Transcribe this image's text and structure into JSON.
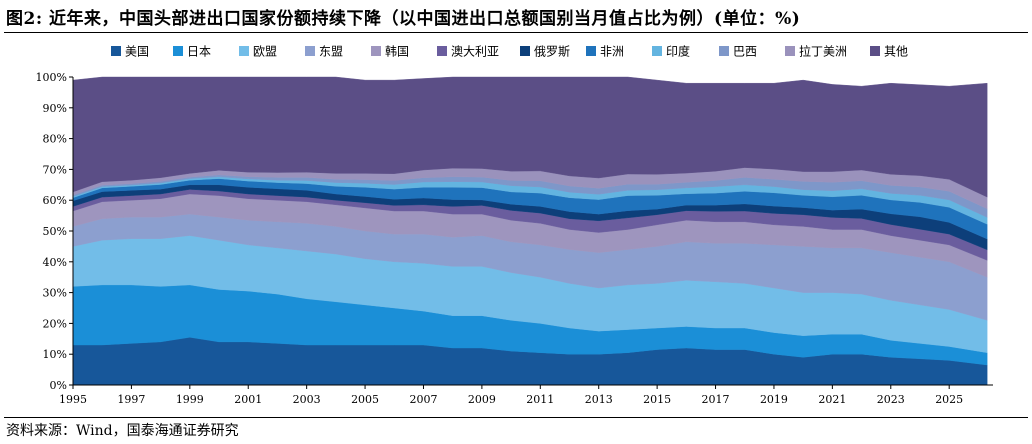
{
  "title": "图2:  近年来，中国头部进出口国家份额持续下降（以中国进出口总额国别当月值占比为例）(单位：%)",
  "source": "资料来源：Wind，国泰海通证券研究",
  "chart_data": {
    "type": "area",
    "stacked": true,
    "ylim": [
      0,
      100
    ],
    "xlim": [
      1995,
      2026.5
    ],
    "y_ticks": [
      "0%",
      "10%",
      "20%",
      "30%",
      "40%",
      "50%",
      "60%",
      "70%",
      "80%",
      "90%",
      "100%"
    ],
    "x_ticks": [
      "1995",
      "1997",
      "1999",
      "2001",
      "2003",
      "2005",
      "2007",
      "2009",
      "2011",
      "2013",
      "2015",
      "2017",
      "2019",
      "2021",
      "2023",
      "2025"
    ],
    "legend_position": "top",
    "x": [
      1995,
      1996,
      1997,
      1998,
      1999,
      2000,
      2001,
      2002,
      2003,
      2004,
      2005,
      2006,
      2007,
      2008,
      2009,
      2010,
      2011,
      2012,
      2013,
      2014,
      2015,
      2016,
      2017,
      2018,
      2019,
      2020,
      2021,
      2022,
      2023,
      2024,
      2025,
      2026.3
    ],
    "series": [
      {
        "name": "美国",
        "color": "#17579a",
        "values": [
          13,
          13,
          13.5,
          14,
          15.5,
          14,
          14,
          13.5,
          13,
          13,
          13,
          13,
          13,
          12,
          12,
          11,
          10.5,
          10,
          10,
          10.5,
          11.5,
          12,
          11.5,
          11.5,
          10,
          9,
          10,
          10,
          9,
          8.5,
          8,
          6.5
        ]
      },
      {
        "name": "日本",
        "color": "#1b8fd7",
        "values": [
          19,
          19.5,
          19,
          18,
          17,
          17,
          16.5,
          16,
          15,
          14,
          13,
          12,
          11,
          10.5,
          10.5,
          10,
          9.5,
          8.5,
          7.5,
          7.5,
          7,
          7,
          7,
          7,
          7,
          7,
          6.5,
          6.5,
          5.5,
          5,
          4.5,
          4
        ]
      },
      {
        "name": "欧盟",
        "color": "#72bde8",
        "values": [
          13,
          14.5,
          15,
          15.5,
          16,
          16,
          15,
          15,
          15.5,
          15.5,
          15,
          15,
          15.5,
          16,
          16,
          15.5,
          15,
          14.5,
          14,
          14.5,
          14.5,
          15,
          15,
          14.5,
          14.5,
          14,
          13.5,
          13,
          13,
          12.5,
          12,
          10.5
        ]
      },
      {
        "name": "东盟",
        "color": "#8c9fcf",
        "values": [
          6.5,
          7,
          7,
          7,
          7,
          7.5,
          8,
          8.5,
          9,
          9,
          9,
          9,
          9.5,
          9.5,
          10,
          10,
          10.5,
          11,
          11.5,
          11.5,
          12,
          12.5,
          12.5,
          13,
          14,
          15,
          14.5,
          15,
          15.5,
          15.5,
          15.5,
          14
        ]
      },
      {
        "name": "韩国",
        "color": "#9e95be",
        "values": [
          5,
          5.5,
          5.5,
          6,
          6.5,
          7,
          7,
          7,
          7,
          7,
          7.5,
          7.5,
          7.5,
          7.5,
          7,
          7,
          7,
          6.5,
          6.5,
          6.5,
          7,
          7,
          7,
          7,
          6.5,
          6.5,
          6,
          6,
          5.5,
          5.5,
          5.5,
          5.5
        ]
      },
      {
        "name": "澳大利亚",
        "color": "#6a5d9e",
        "values": [
          1.5,
          1.5,
          1.5,
          1.5,
          1.5,
          1.5,
          1.5,
          1.5,
          1.5,
          1.5,
          1.7,
          1.8,
          2,
          2.5,
          2.8,
          3.2,
          3.3,
          3.5,
          3.8,
          3.8,
          3.3,
          3.1,
          3.4,
          3.5,
          3.7,
          3.8,
          3.9,
          3.6,
          3.6,
          3.6,
          3.5,
          3.4
        ]
      },
      {
        "name": "俄罗斯",
        "color": "#0d3f7a",
        "values": [
          1.8,
          1.8,
          1.7,
          1.6,
          1.5,
          2,
          2.2,
          2.2,
          2.2,
          2,
          2,
          2,
          2.2,
          2.2,
          1.8,
          2,
          2.2,
          2.3,
          2.2,
          2.3,
          1.8,
          1.8,
          2,
          2.3,
          2.4,
          2.3,
          2.4,
          3,
          3.5,
          4,
          3.8,
          3.5
        ]
      },
      {
        "name": "非洲",
        "color": "#1f73bc",
        "values": [
          1,
          1.2,
          1.3,
          1.5,
          1.5,
          2,
          2,
          2,
          2.2,
          2.5,
          3,
          3.3,
          3.5,
          4,
          4,
          4,
          4.3,
          4.5,
          4.7,
          4.9,
          4.5,
          3.7,
          3.9,
          4.1,
          4.3,
          4,
          4.3,
          4.5,
          4.5,
          4.7,
          4.9,
          4.8
        ]
      },
      {
        "name": "印度",
        "color": "#63b4e0",
        "values": [
          0.4,
          0.4,
          0.4,
          0.5,
          0.5,
          0.6,
          0.7,
          0.8,
          1,
          1.2,
          1.3,
          1.5,
          1.7,
          1.8,
          1.8,
          2,
          2,
          1.8,
          1.7,
          1.7,
          1.8,
          1.9,
          2.1,
          2.1,
          2,
          1.8,
          2,
          2.1,
          2.1,
          2.3,
          2.4,
          2.2
        ]
      },
      {
        "name": "巴西",
        "color": "#7e97c9",
        "values": [
          0.5,
          0.5,
          0.5,
          0.5,
          0.5,
          0.6,
          0.7,
          0.9,
          1,
          1.1,
          1.2,
          1.3,
          1.4,
          1.6,
          1.6,
          1.7,
          2,
          2,
          2,
          2,
          1.8,
          1.8,
          2,
          2.4,
          2.4,
          2.7,
          2.7,
          2.6,
          2.6,
          2.7,
          2.8,
          2.8
        ]
      },
      {
        "name": "拉丁美洲",
        "color": "#9a92bc",
        "values": [
          1,
          1.1,
          1.1,
          1.2,
          1.2,
          1.5,
          1.5,
          1.6,
          1.7,
          1.9,
          2,
          2.2,
          2.5,
          2.8,
          2.8,
          3,
          3.2,
          3.3,
          3.3,
          3.3,
          3.2,
          3,
          3,
          3.2,
          3.3,
          3.2,
          3.5,
          3.5,
          3.6,
          3.7,
          3.9,
          3.8
        ]
      },
      {
        "name": "其他",
        "color": "#5b4e86",
        "values": [
          36.3,
          34,
          33.5,
          32.7,
          31.3,
          30.3,
          30.9,
          31,
          30.9,
          31.3,
          30.3,
          30.4,
          29.7,
          29.6,
          29.7,
          30.6,
          30.5,
          32.1,
          33.3,
          31.6,
          30.6,
          29.2,
          28.6,
          27.4,
          27.9,
          29.7,
          28.3,
          27.2,
          29.6,
          29.5,
          30.2,
          37
        ]
      }
    ]
  }
}
